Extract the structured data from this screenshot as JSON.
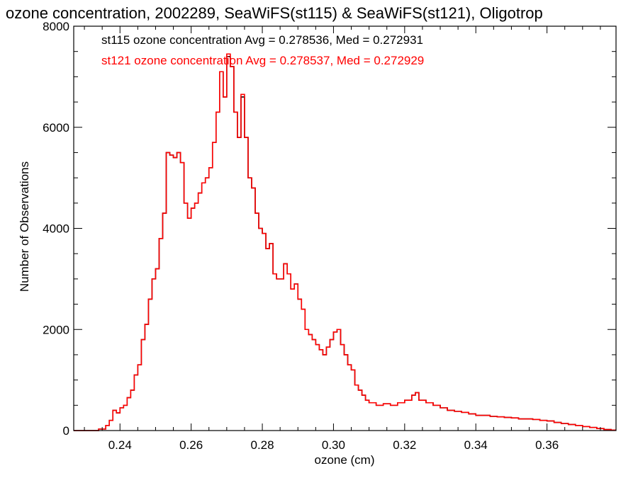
{
  "chart_data": {
    "type": "line",
    "step": true,
    "title": "ozone concentration, 2002289, SeaWiFS(st115) & SeaWiFS(st121), Oligotrop",
    "xlabel": "ozone (cm)",
    "ylabel": "Number of Observations",
    "xlim": [
      0.227,
      0.3794
    ],
    "ylim": [
      0,
      8000
    ],
    "xticks": [
      0.24,
      0.26,
      0.28,
      0.3,
      0.32,
      0.34,
      0.36
    ],
    "xtick_labels": [
      "0.24",
      "0.26",
      "0.28",
      "0.30",
      "0.32",
      "0.34",
      "0.36"
    ],
    "yticks": [
      0,
      2000,
      4000,
      6000,
      8000
    ],
    "ytick_labels": [
      "0",
      "2000",
      "4000",
      "6000",
      "8000"
    ],
    "legend_position": "top-left",
    "annotations": [
      {
        "text": "st115 ozone concentration Avg = 0.278536, Med = 0.272931",
        "color": "#000000"
      },
      {
        "text": "st121 ozone concentration Avg = 0.278537, Med = 0.272929",
        "color": "#ff0000"
      }
    ],
    "series": [
      {
        "color": "#000000",
        "x": [
          0.227,
          0.234,
          0.236,
          0.237,
          0.238,
          0.239,
          0.24,
          0.241,
          0.242,
          0.243,
          0.244,
          0.245,
          0.246,
          0.247,
          0.248,
          0.249,
          0.25,
          0.251,
          0.252,
          0.253,
          0.254,
          0.255,
          0.256,
          0.257,
          0.258,
          0.259,
          0.26,
          0.261,
          0.262,
          0.263,
          0.264,
          0.265,
          0.266,
          0.267,
          0.268,
          0.269,
          0.27,
          0.271,
          0.272,
          0.273,
          0.274,
          0.275,
          0.276,
          0.277,
          0.278,
          0.279,
          0.28,
          0.281,
          0.282,
          0.283,
          0.284,
          0.285,
          0.286,
          0.287,
          0.288,
          0.289,
          0.29,
          0.291,
          0.292,
          0.293,
          0.294,
          0.295,
          0.296,
          0.297,
          0.298,
          0.299,
          0.3,
          0.301,
          0.302,
          0.303,
          0.304,
          0.305,
          0.306,
          0.307,
          0.308,
          0.309,
          0.31,
          0.312,
          0.314,
          0.316,
          0.318,
          0.32,
          0.322,
          0.323,
          0.324,
          0.326,
          0.328,
          0.33,
          0.332,
          0.334,
          0.336,
          0.338,
          0.34,
          0.342,
          0.344,
          0.346,
          0.348,
          0.35,
          0.352,
          0.354,
          0.356,
          0.358,
          0.36,
          0.362,
          0.364,
          0.366,
          0.368,
          0.37,
          0.372,
          0.374,
          0.376,
          0.378
        ],
        "y": [
          0,
          30,
          100,
          200,
          400,
          350,
          450,
          500,
          650,
          800,
          1100,
          1300,
          1800,
          2100,
          2600,
          3000,
          3200,
          3800,
          4300,
          5500,
          5450,
          5400,
          5500,
          5300,
          4500,
          4200,
          4400,
          4500,
          4700,
          4900,
          5000,
          5200,
          5700,
          6300,
          7100,
          6600,
          7400,
          7200,
          6300,
          5800,
          6600,
          5800,
          5000,
          4800,
          4300,
          4000,
          3900,
          3600,
          3700,
          3100,
          3000,
          3000,
          3300,
          3100,
          2800,
          2900,
          2600,
          2400,
          2000,
          1900,
          1800,
          1700,
          1600,
          1500,
          1650,
          1800,
          1950,
          2000,
          1700,
          1500,
          1300,
          1200,
          900,
          800,
          700,
          600,
          550,
          500,
          530,
          500,
          550,
          600,
          700,
          750,
          600,
          550,
          500,
          450,
          400,
          380,
          360,
          330,
          300,
          300,
          280,
          270,
          260,
          250,
          230,
          230,
          220,
          200,
          190,
          160,
          140,
          120,
          100,
          80,
          60,
          40,
          20,
          10
        ]
      },
      {
        "color": "#ff0000",
        "x": [
          0.227,
          0.234,
          0.236,
          0.237,
          0.238,
          0.239,
          0.24,
          0.241,
          0.242,
          0.243,
          0.244,
          0.245,
          0.246,
          0.247,
          0.248,
          0.249,
          0.25,
          0.251,
          0.252,
          0.253,
          0.254,
          0.255,
          0.256,
          0.257,
          0.258,
          0.259,
          0.26,
          0.261,
          0.262,
          0.263,
          0.264,
          0.265,
          0.266,
          0.267,
          0.268,
          0.269,
          0.27,
          0.271,
          0.272,
          0.273,
          0.274,
          0.275,
          0.276,
          0.277,
          0.278,
          0.279,
          0.28,
          0.281,
          0.282,
          0.283,
          0.284,
          0.285,
          0.286,
          0.287,
          0.288,
          0.289,
          0.29,
          0.291,
          0.292,
          0.293,
          0.294,
          0.295,
          0.296,
          0.297,
          0.298,
          0.299,
          0.3,
          0.301,
          0.302,
          0.303,
          0.304,
          0.305,
          0.306,
          0.307,
          0.308,
          0.309,
          0.31,
          0.312,
          0.314,
          0.316,
          0.318,
          0.32,
          0.322,
          0.323,
          0.324,
          0.326,
          0.328,
          0.33,
          0.332,
          0.334,
          0.336,
          0.338,
          0.34,
          0.342,
          0.344,
          0.346,
          0.348,
          0.35,
          0.352,
          0.354,
          0.356,
          0.358,
          0.36,
          0.362,
          0.364,
          0.366,
          0.368,
          0.37,
          0.372,
          0.374,
          0.376,
          0.378
        ],
        "y": [
          0,
          30,
          100,
          200,
          400,
          350,
          450,
          500,
          650,
          800,
          1100,
          1300,
          1800,
          2100,
          2600,
          3000,
          3200,
          3800,
          4300,
          5500,
          5450,
          5400,
          5500,
          5300,
          4500,
          4200,
          4400,
          4500,
          4700,
          4900,
          5000,
          5200,
          5700,
          6300,
          7100,
          6600,
          7450,
          7200,
          6300,
          5800,
          6650,
          5800,
          5000,
          4800,
          4300,
          4000,
          3900,
          3600,
          3700,
          3100,
          3000,
          3000,
          3300,
          3100,
          2800,
          2900,
          2600,
          2400,
          2000,
          1900,
          1800,
          1700,
          1600,
          1500,
          1650,
          1800,
          1950,
          2000,
          1700,
          1500,
          1300,
          1200,
          900,
          800,
          700,
          600,
          550,
          500,
          530,
          500,
          550,
          600,
          700,
          750,
          600,
          550,
          500,
          450,
          400,
          380,
          360,
          330,
          300,
          300,
          280,
          270,
          260,
          250,
          230,
          230,
          220,
          200,
          190,
          160,
          140,
          120,
          100,
          80,
          60,
          40,
          20,
          10
        ]
      }
    ]
  }
}
